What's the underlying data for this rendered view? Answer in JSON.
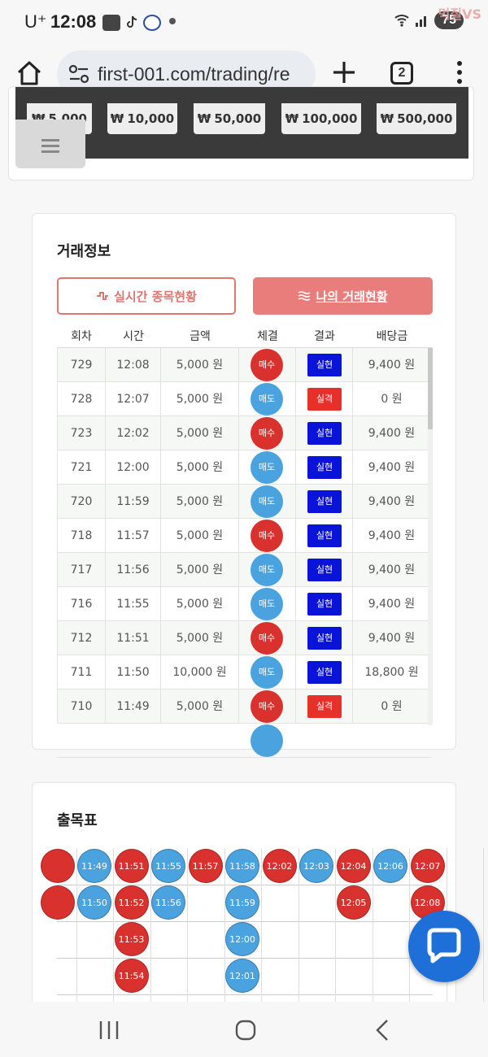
{
  "status_bar": {
    "carrier": "U⁺",
    "time": "12:08",
    "battery": "75",
    "watermark": "먹질VS"
  },
  "browser": {
    "url": "first-001.com/trading/re",
    "tab_count": "2"
  },
  "amount_buttons": [
    {
      "currency": "₩",
      "value": "5,000"
    },
    {
      "currency": "₩",
      "value": "10,000"
    },
    {
      "currency": "₩",
      "value": "50,000"
    },
    {
      "currency": "₩",
      "value": "100,000"
    },
    {
      "currency": "₩",
      "value": "500,000"
    }
  ],
  "trade_info": {
    "title": "거래정보",
    "tab_live": "실시간 종목현황",
    "tab_mine": "나의 거래현황",
    "headers": [
      "회차",
      "시간",
      "금액",
      "체결",
      "결과",
      "배당금"
    ],
    "rows": [
      {
        "round": "729",
        "time": "12:08",
        "amount": "5,000 원",
        "side": "매수",
        "side_type": "buy",
        "result": "실현",
        "result_type": "win",
        "payout": "9,400 원"
      },
      {
        "round": "728",
        "time": "12:07",
        "amount": "5,000 원",
        "side": "매도",
        "side_type": "sell",
        "result": "실격",
        "result_type": "lose",
        "payout": "0 원"
      },
      {
        "round": "723",
        "time": "12:02",
        "amount": "5,000 원",
        "side": "매수",
        "side_type": "buy",
        "result": "실현",
        "result_type": "win",
        "payout": "9,400 원"
      },
      {
        "round": "721",
        "time": "12:00",
        "amount": "5,000 원",
        "side": "매도",
        "side_type": "sell",
        "result": "실현",
        "result_type": "win",
        "payout": "9,400 원"
      },
      {
        "round": "720",
        "time": "11:59",
        "amount": "5,000 원",
        "side": "매도",
        "side_type": "sell",
        "result": "실현",
        "result_type": "win",
        "payout": "9,400 원"
      },
      {
        "round": "718",
        "time": "11:57",
        "amount": "5,000 원",
        "side": "매수",
        "side_type": "buy",
        "result": "실현",
        "result_type": "win",
        "payout": "9,400 원"
      },
      {
        "round": "717",
        "time": "11:56",
        "amount": "5,000 원",
        "side": "매도",
        "side_type": "sell",
        "result": "실현",
        "result_type": "win",
        "payout": "9,400 원"
      },
      {
        "round": "716",
        "time": "11:55",
        "amount": "5,000 원",
        "side": "매도",
        "side_type": "sell",
        "result": "실현",
        "result_type": "win",
        "payout": "9,400 원"
      },
      {
        "round": "712",
        "time": "11:51",
        "amount": "5,000 원",
        "side": "매수",
        "side_type": "buy",
        "result": "실현",
        "result_type": "win",
        "payout": "9,400 원"
      },
      {
        "round": "711",
        "time": "11:50",
        "amount": "10,000 원",
        "side": "매도",
        "side_type": "sell",
        "result": "실현",
        "result_type": "win",
        "payout": "18,800 원"
      },
      {
        "round": "710",
        "time": "11:49",
        "amount": "5,000 원",
        "side": "매수",
        "side_type": "buy",
        "result": "실격",
        "result_type": "lose",
        "payout": "0 원"
      }
    ]
  },
  "outcome_board": {
    "title": "출목표",
    "columns": [
      {
        "color": "red",
        "cells": [
          "",
          ""
        ]
      },
      {
        "color": "blue",
        "cells": [
          "11:49",
          "11:50"
        ]
      },
      {
        "color": "red",
        "cells": [
          "11:51",
          "11:52",
          "11:53",
          "11:54"
        ]
      },
      {
        "color": "blue",
        "cells": [
          "11:55",
          "11:56"
        ]
      },
      {
        "color": "red",
        "cells": [
          "11:57"
        ]
      },
      {
        "color": "blue",
        "cells": [
          "11:58",
          "11:59",
          "12:00",
          "12:01"
        ]
      },
      {
        "color": "red",
        "cells": [
          "12:02"
        ]
      },
      {
        "color": "blue",
        "cells": [
          "12:03"
        ]
      },
      {
        "color": "red",
        "cells": [
          "12:04",
          "12:05"
        ]
      },
      {
        "color": "blue",
        "cells": [
          "12:06"
        ]
      },
      {
        "color": "red",
        "cells": [
          "12:07",
          "12:08"
        ]
      }
    ]
  },
  "colors": {
    "buy": "#d9322e",
    "sell": "#4aa3df",
    "win": "#0a14d8",
    "lose": "#e8302a",
    "accent": "#e87d7b",
    "fab": "#1f6fd8"
  }
}
